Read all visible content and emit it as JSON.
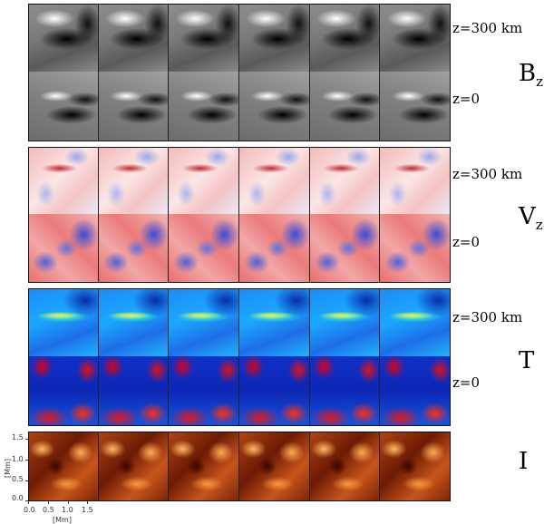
{
  "rows": [
    {
      "id": "bz-z300",
      "label": "z=300 km"
    },
    {
      "id": "bz-z0",
      "label": "z=0"
    },
    {
      "id": "vz-z300",
      "label": "z=300 km"
    },
    {
      "id": "vz-z0",
      "label": "z=0"
    },
    {
      "id": "t-z300",
      "label": "z=300 km"
    },
    {
      "id": "t-z0",
      "label": "z=0"
    },
    {
      "id": "i",
      "label": ""
    }
  ],
  "quantities": {
    "bz": {
      "symbol": "B",
      "subscript": "z"
    },
    "vz": {
      "symbol": "V",
      "subscript": "z"
    },
    "t": {
      "symbol": "T",
      "subscript": ""
    },
    "i": {
      "symbol": "I",
      "subscript": ""
    }
  },
  "axes": {
    "y_ticks": [
      "1.5",
      "1.0",
      "0.5",
      "0.0"
    ],
    "x_ticks": [
      "0.0",
      "0.5",
      "1.0",
      "1.5"
    ],
    "y_title": "[Mm]",
    "x_title": "[Mm]"
  },
  "columns": 6
}
